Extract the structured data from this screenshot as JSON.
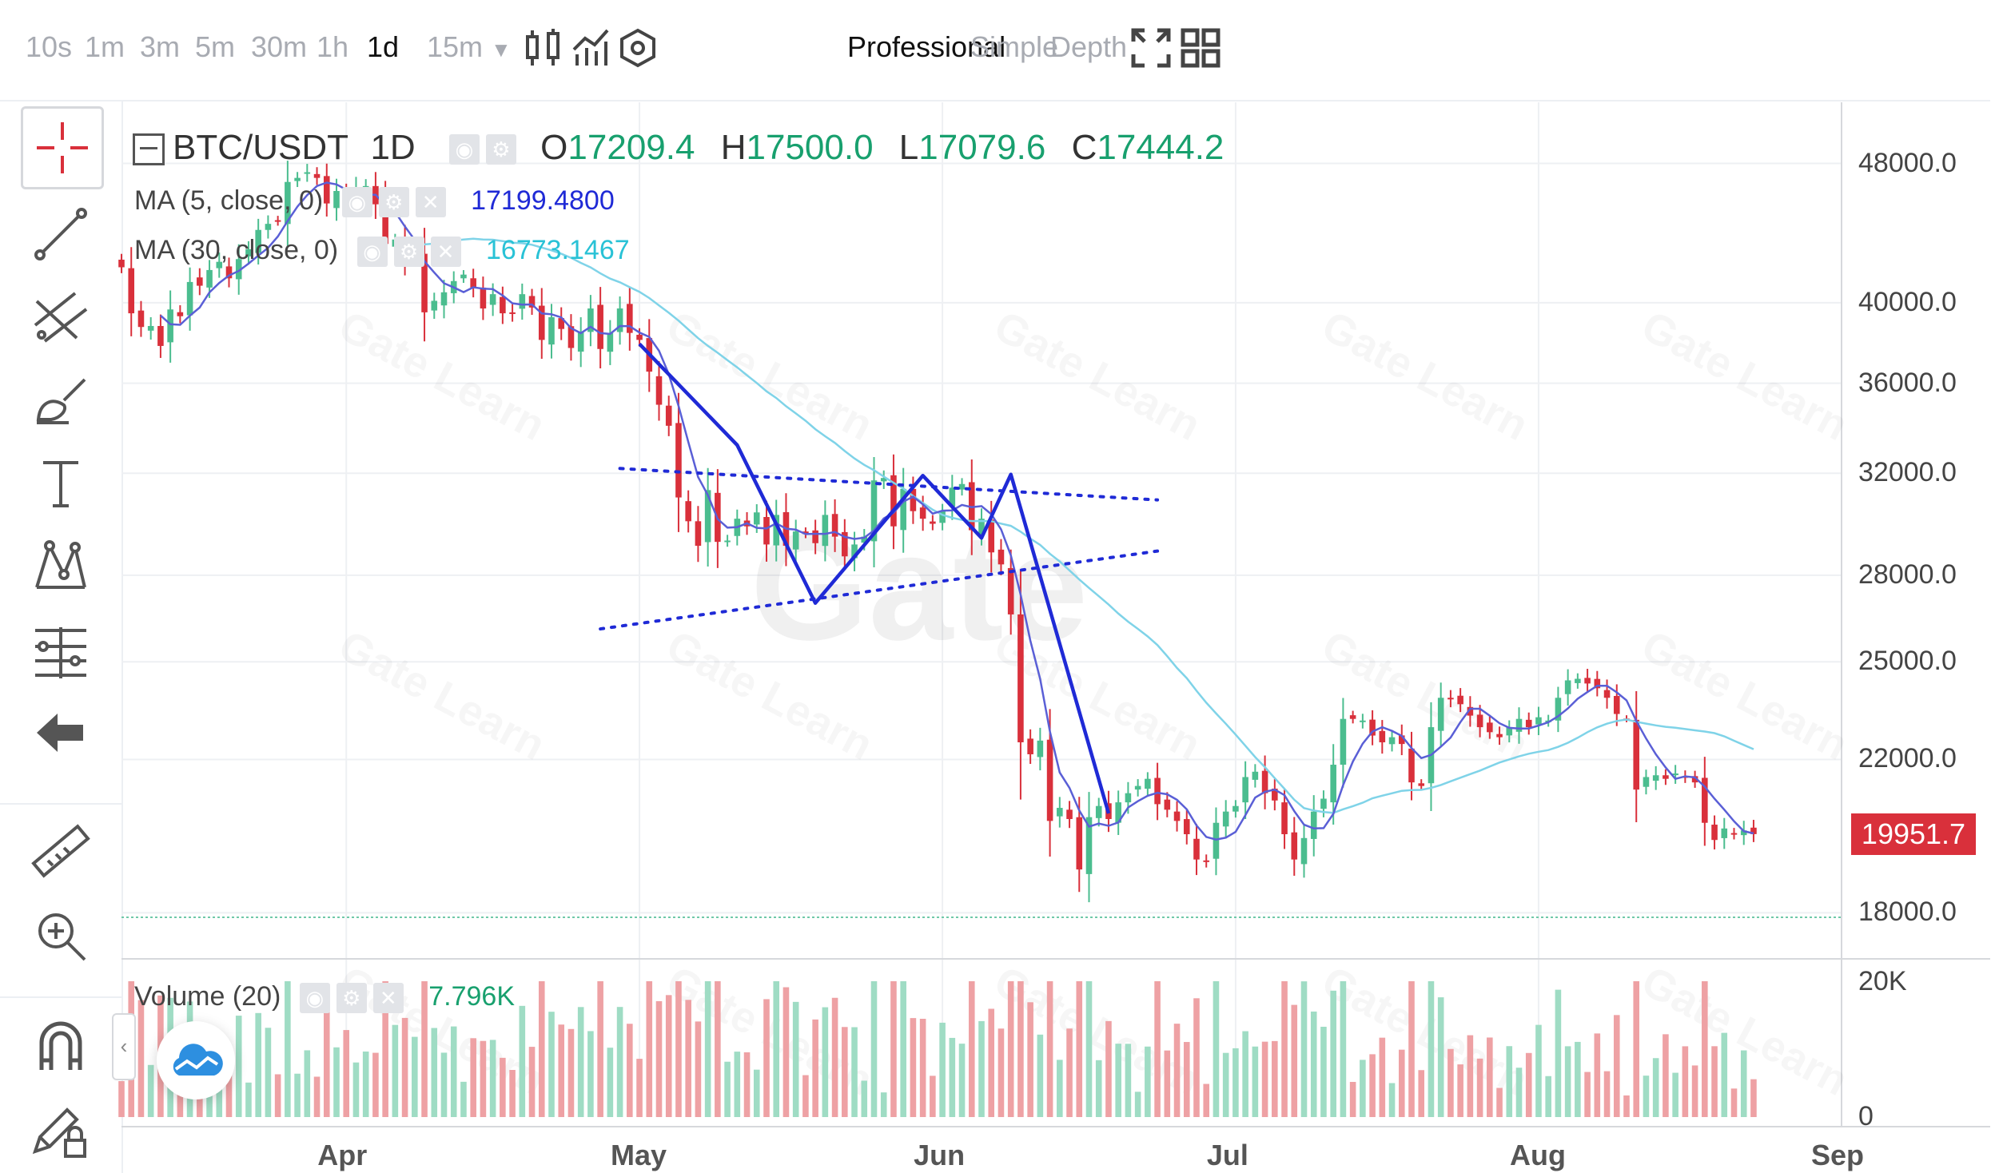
{
  "toolbar_top": {
    "timeframes": [
      "10s",
      "1m",
      "3m",
      "5m",
      "30m",
      "1h",
      "1d",
      "15m"
    ],
    "active_timeframe": "1d",
    "more_arrow": "▼",
    "icons": [
      "candlestick-icon",
      "indicator-icon",
      "settings-hex-icon"
    ],
    "modes": [
      "Professional",
      "Simple",
      "Depth"
    ],
    "active_mode": "Professional"
  },
  "toolbar_left": [
    "crosshair-icon",
    "trend-line-icon",
    "parallel-channel-icon",
    "brush-icon",
    "text-icon",
    "pattern-icon",
    "fibonacci-icon",
    "back-arrow-icon",
    "ruler-icon",
    "zoom-in-icon",
    "magnet-icon",
    "lock-pen-icon"
  ],
  "legend": {
    "symbol": "BTC/USDT",
    "interval": "1D",
    "open_label": "O",
    "open": "17209.4",
    "high_label": "H",
    "high": "17500.0",
    "low_label": "L",
    "low": "17079.6",
    "close_label": "C",
    "close": "17444.2",
    "ma5_label": "MA (5, close, 0)",
    "ma5_value": "17199.4800",
    "ma30_label": "MA (30, close, 0)",
    "ma30_value": "16773.1467",
    "volume_label": "Volume (20)",
    "volume_value": "7.796K"
  },
  "watermark": "Gate",
  "watermark_small": "Gate Learn",
  "colors": {
    "up": "#4bbd8f",
    "down": "#d9303b",
    "ma5": "#5a5fd6",
    "ma30": "#7fd3e8",
    "drawing": "#1f2ad6",
    "vol_up": "#9fdcc4",
    "vol_down": "#eea1a4"
  },
  "chart_data": {
    "type": "candlestick",
    "title": "BTC/USDT 1D",
    "y_axis_log": true,
    "ylim": [
      17000,
      52000
    ],
    "y_ticks": [
      "48000.0",
      "40000.0",
      "36000.0",
      "32000.0",
      "28000.0",
      "25000.0",
      "22000.0",
      "18000.0"
    ],
    "y_tick_values": [
      48000,
      40000,
      36000,
      32000,
      28000,
      25000,
      22000,
      18000
    ],
    "x_ticks": [
      "Apr",
      "May",
      "Jun",
      "Jul",
      "Aug",
      "Sep"
    ],
    "x_tick_dates": [
      "2022-04-01",
      "2022-05-01",
      "2022-06-01",
      "2022-07-01",
      "2022-08-01",
      "2022-09-01"
    ],
    "x_range": [
      "2022-03-09",
      "2022-09-01"
    ],
    "current_price": "19951.7",
    "volume_max_label": "20K",
    "volume_min_label": "0",
    "close_series": {
      "start_date": "2022-03-09",
      "values": [
        41900,
        39450,
        38750,
        38800,
        37800,
        39650,
        39300,
        41100,
        40900,
        41750,
        42200,
        41300,
        42350,
        42900,
        44000,
        44350,
        44500,
        46850,
        47100,
        47450,
        47100,
        45550,
        46300,
        45500,
        46450,
        46600,
        45500,
        43200,
        43450,
        42250,
        42750,
        39500,
        40100,
        40550,
        41150,
        41500,
        40800,
        39700,
        40450,
        39450,
        39450,
        40450,
        39750,
        38100,
        39250,
        38650,
        37700,
        38500,
        39700,
        37650,
        38450,
        39700,
        38450,
        38100,
        36550,
        35000,
        34050,
        31000,
        30050,
        29100,
        31300,
        29250,
        29300,
        30150,
        29850,
        30400,
        29150,
        30300,
        29100,
        29650,
        29550,
        29200,
        30300,
        29450,
        28700,
        29150,
        29450,
        31700,
        31800,
        29850,
        31350,
        30450,
        30150,
        29950,
        30450,
        31400,
        31550,
        29700,
        30150,
        28850,
        28400,
        26600,
        22500,
        22150,
        22550,
        20300,
        20650,
        20350,
        19050,
        20400,
        20700,
        20350,
        20800,
        21050,
        21250,
        21450,
        20750,
        20600,
        20300,
        19950,
        19300,
        19250,
        20250,
        20550,
        20700,
        21500,
        21650,
        21050,
        20850,
        19950,
        19300,
        19850,
        20550,
        20900,
        21850,
        23200,
        23200,
        23150,
        22700,
        22500,
        22650,
        22450,
        21350,
        21250,
        22950,
        23850,
        23800,
        23650,
        23300,
        22950,
        22800,
        22650,
        22950,
        23200,
        22950,
        23250,
        23150,
        23850,
        24400,
        24450,
        24300,
        24150,
        23850,
        23350,
        23200,
        21150,
        21500,
        21550,
        21450,
        21600,
        21500,
        21350,
        20250,
        19800,
        20100,
        19950,
        20050,
        19951.7
      ]
    },
    "series": [
      {
        "name": "MA (5, close, 0)",
        "value": 17199.48
      },
      {
        "name": "MA (30, close, 0)",
        "value": 16773.1467
      }
    ],
    "annotations": {
      "upper_dotted": [
        [
          "2022-04-29",
          32200
        ],
        [
          "2022-06-23",
          30900
        ]
      ],
      "lower_dotted": [
        [
          "2022-04-27",
          26100
        ],
        [
          "2022-06-23",
          28900
        ]
      ],
      "zigzag": [
        [
          "2022-05-01",
          37900
        ],
        [
          "2022-05-11",
          33200
        ],
        [
          "2022-05-19",
          27000
        ],
        [
          "2022-05-30",
          31900
        ],
        [
          "2022-06-05",
          29400
        ],
        [
          "2022-06-08",
          31950
        ],
        [
          "2022-06-18",
          20500
        ]
      ]
    },
    "grid": true
  }
}
